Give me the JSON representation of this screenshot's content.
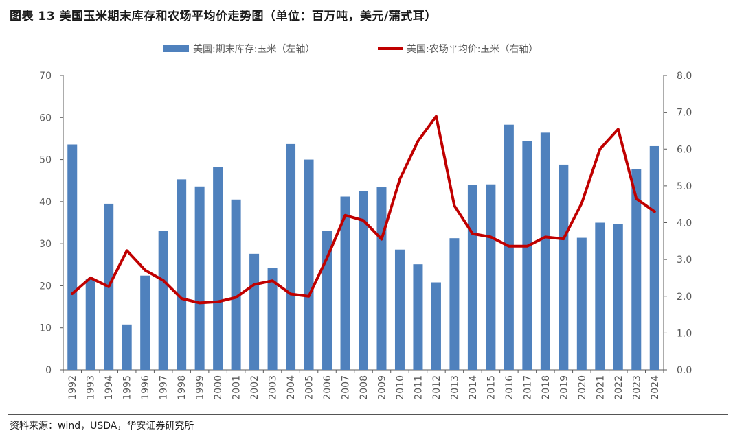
{
  "header": {
    "title": "图表 13  美国玉米期末库存和农场平均价走势图（单位：百万吨，美元/蒲式耳）"
  },
  "footer": {
    "source": "资料来源：wind，USDA，华安证券研究所"
  },
  "colors": {
    "bar": "#4f81bd",
    "line": "#c00000",
    "axis": "#595959",
    "rule": "#555555"
  },
  "chart_data": {
    "type": "bar+line",
    "title": "美国玉米期末库存和农场平均价走势图",
    "categories": [
      "1992",
      "1993",
      "1994",
      "1995",
      "1996",
      "1997",
      "1998",
      "1999",
      "2000",
      "2001",
      "2002",
      "2003",
      "2004",
      "2005",
      "2006",
      "2007",
      "2008",
      "2009",
      "2010",
      "2011",
      "2012",
      "2013",
      "2014",
      "2015",
      "2016",
      "2017",
      "2018",
      "2019",
      "2020",
      "2021",
      "2022",
      "2023",
      "2024"
    ],
    "series": [
      {
        "name": "美国:期末库存:玉米（左轴）",
        "kind": "bar",
        "axis": "left",
        "values": [
          53.6,
          21.6,
          39.5,
          10.8,
          22.4,
          33.1,
          45.3,
          43.6,
          48.2,
          40.5,
          27.6,
          24.3,
          53.7,
          50.0,
          33.1,
          41.2,
          42.5,
          43.4,
          28.6,
          25.1,
          20.8,
          31.3,
          44.0,
          44.1,
          58.3,
          54.4,
          56.4,
          48.8,
          31.4,
          35.0,
          34.6,
          47.7,
          53.2
        ]
      },
      {
        "name": "美国:农场平均价:玉米（右轴）",
        "kind": "line",
        "axis": "right",
        "values": [
          2.07,
          2.5,
          2.26,
          3.24,
          2.71,
          2.43,
          1.94,
          1.82,
          1.85,
          1.97,
          2.32,
          2.42,
          2.06,
          2.0,
          3.04,
          4.2,
          4.06,
          3.55,
          5.18,
          6.22,
          6.89,
          4.46,
          3.7,
          3.61,
          3.36,
          3.36,
          3.61,
          3.56,
          4.53,
          6.0,
          6.54,
          4.65,
          4.3
        ]
      }
    ],
    "y_left": {
      "min": 0,
      "max": 70,
      "step": 10,
      "ticks": [
        "0",
        "10",
        "20",
        "30",
        "40",
        "50",
        "60",
        "70"
      ]
    },
    "y_right": {
      "min": 0,
      "max": 8,
      "step": 1,
      "ticks": [
        "0.0",
        "1.0",
        "2.0",
        "3.0",
        "4.0",
        "5.0",
        "6.0",
        "7.0",
        "8.0"
      ]
    },
    "legend_position": "top-center",
    "grid": false
  }
}
